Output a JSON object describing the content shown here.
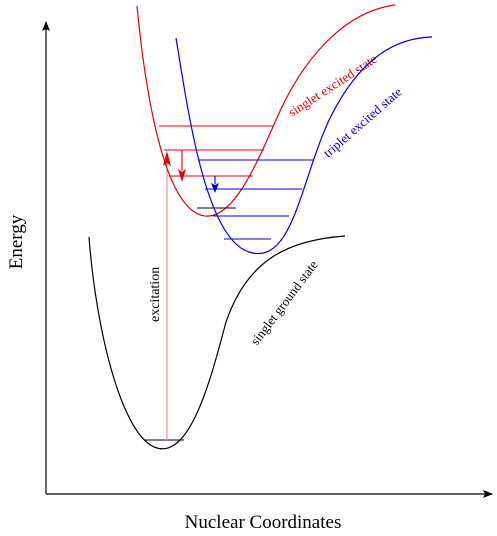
{
  "axes": {
    "x_label": "Nuclear Coordinates",
    "y_label": "Energy"
  },
  "curves": {
    "ground": {
      "label": "singlet ground state",
      "color": "#000000"
    },
    "singlet": {
      "label": "singlet excited state",
      "color": "#e00000"
    },
    "triplet": {
      "label": "triplet excited state",
      "color": "#0000e0"
    }
  },
  "excitation": {
    "label": "excitation",
    "color": "#ff8080",
    "head_color": "#e00000"
  },
  "ground_level_count": 1,
  "singlet_level_count": 4,
  "triplet_level_count": 4
}
